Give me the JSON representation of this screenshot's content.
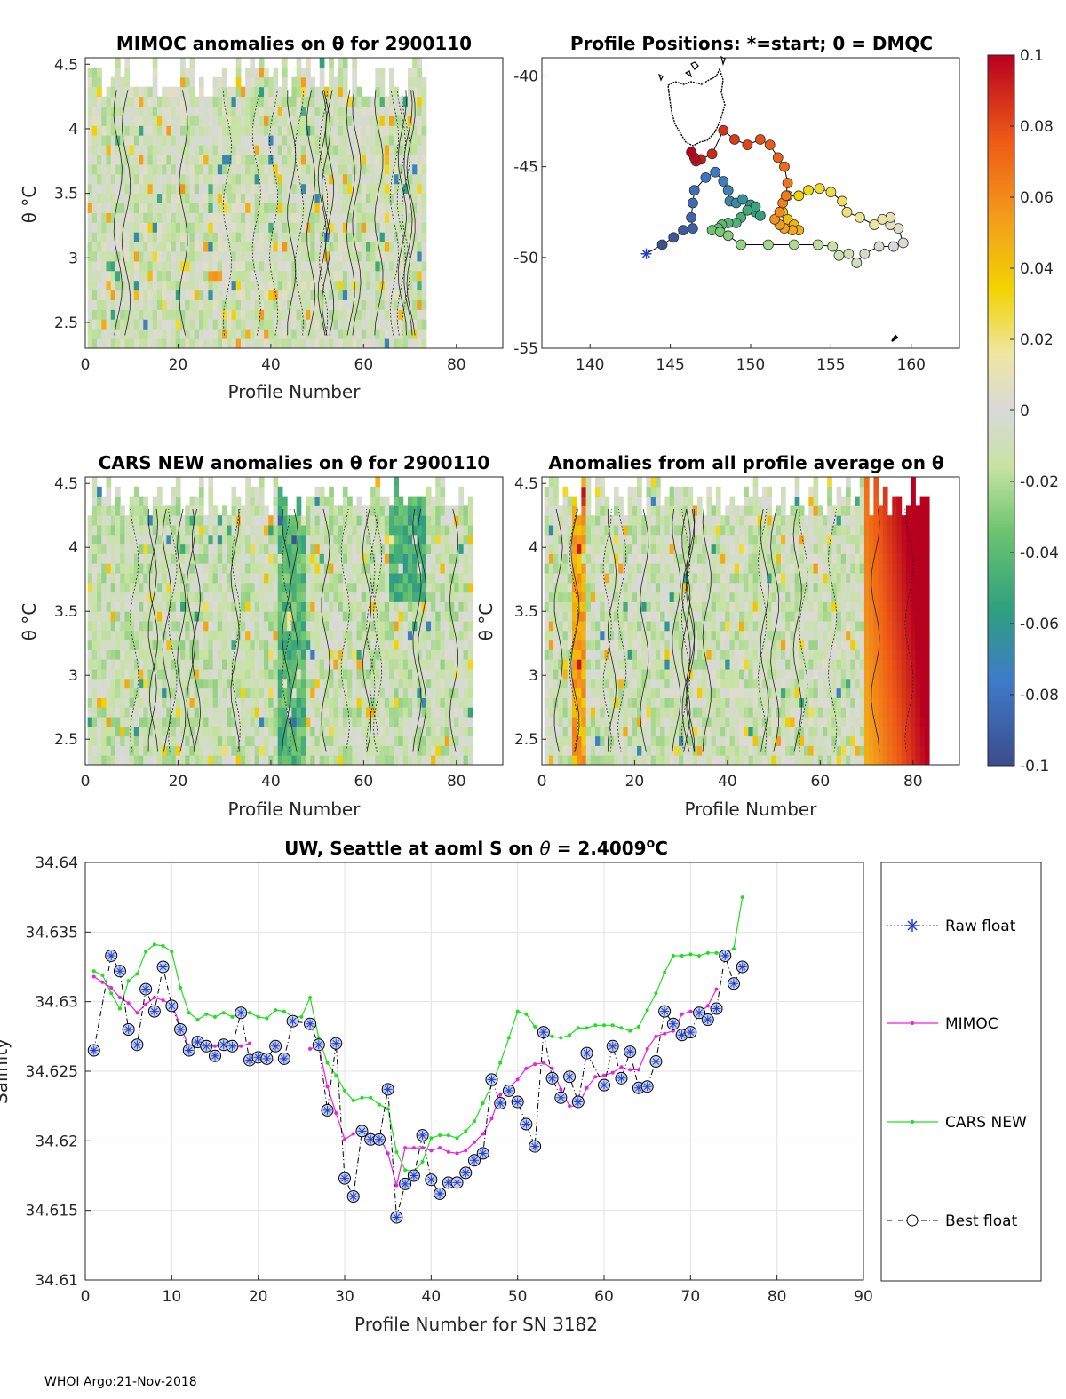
{
  "footer": "WHOI Argo:21-Nov-2018",
  "colorbar": {
    "ticks": [
      "0.1",
      "0.08",
      "0.06",
      "0.04",
      "0.02",
      "0",
      "-0.02",
      "-0.04",
      "-0.06",
      "-0.08",
      "-0.1"
    ],
    "range": [
      -0.1,
      0.1
    ]
  },
  "chart_data": [
    {
      "type": "heatmap",
      "title": "MIMOC anomalies on θ  for 2900110",
      "xlabel": "Profile Number",
      "ylabel": "θ °C",
      "xlim": [
        0,
        90
      ],
      "ylim": [
        2.3,
        4.55
      ],
      "xticks": [
        "0",
        "20",
        "40",
        "60",
        "80"
      ],
      "yticks": [
        "2.5",
        "3",
        "3.5",
        "4",
        "4.5"
      ],
      "profiles": 73
    },
    {
      "type": "scatter",
      "title": "Profile Positions: *=start; 0 = DMQC",
      "xlim": [
        137,
        163
      ],
      "ylim": [
        -55,
        -39
      ],
      "xticks": [
        "140",
        "145",
        "150",
        "155",
        "160"
      ],
      "yticks": [
        "-40",
        "-45",
        "-50",
        "-55"
      ],
      "track": [
        [
          143.5,
          -49.8
        ],
        [
          144.5,
          -49.3
        ],
        [
          145.2,
          -48.9
        ],
        [
          145.8,
          -48.5
        ],
        [
          146.4,
          -48.4
        ],
        [
          146.3,
          -47.8
        ],
        [
          146.4,
          -47.0
        ],
        [
          146.5,
          -46.3
        ],
        [
          147.2,
          -45.6
        ],
        [
          147.8,
          -45.3
        ],
        [
          148.3,
          -45.8
        ],
        [
          148.6,
          -46.3
        ],
        [
          148.7,
          -46.9
        ],
        [
          149.1,
          -47.0
        ],
        [
          149.5,
          -46.8
        ],
        [
          150.0,
          -47.1
        ],
        [
          150.3,
          -47.5
        ],
        [
          150.6,
          -47.7
        ],
        [
          150.3,
          -47.2
        ],
        [
          149.8,
          -47.4
        ],
        [
          149.4,
          -47.8
        ],
        [
          149.1,
          -48.1
        ],
        [
          148.6,
          -48.1
        ],
        [
          148.2,
          -48.2
        ],
        [
          148.0,
          -48.4
        ],
        [
          147.6,
          -48.5
        ],
        [
          148.1,
          -48.6
        ],
        [
          148.6,
          -48.8
        ],
        [
          149.4,
          -49.3
        ],
        [
          151.1,
          -49.3
        ],
        [
          152.7,
          -49.3
        ],
        [
          154.2,
          -49.3
        ],
        [
          155.1,
          -49.4
        ],
        [
          155.5,
          -49.9
        ],
        [
          156.1,
          -49.8
        ],
        [
          156.6,
          -50.3
        ],
        [
          157.1,
          -49.8
        ],
        [
          158.0,
          -49.4
        ],
        [
          158.9,
          -49.4
        ],
        [
          159.5,
          -49.2
        ],
        [
          159.2,
          -48.4
        ],
        [
          158.7,
          -48.2
        ],
        [
          158.7,
          -47.8
        ],
        [
          158.2,
          -47.9
        ],
        [
          157.7,
          -48.2
        ],
        [
          156.8,
          -47.8
        ],
        [
          156.0,
          -47.5
        ],
        [
          155.7,
          -46.9
        ],
        [
          155.0,
          -46.4
        ],
        [
          154.3,
          -46.2
        ],
        [
          153.6,
          -46.3
        ],
        [
          153.0,
          -46.6
        ],
        [
          152.3,
          -46.6
        ],
        [
          152.0,
          -47.5
        ],
        [
          152.3,
          -47.9
        ],
        [
          152.7,
          -48.2
        ],
        [
          153.0,
          -48.5
        ],
        [
          152.6,
          -48.5
        ],
        [
          152.1,
          -48.4
        ],
        [
          151.8,
          -48.2
        ],
        [
          151.5,
          -47.9
        ],
        [
          151.8,
          -47.5
        ],
        [
          152.0,
          -47.0
        ],
        [
          152.2,
          -46.6
        ],
        [
          152.3,
          -45.9
        ],
        [
          152.1,
          -45.0
        ],
        [
          151.7,
          -44.5
        ],
        [
          151.2,
          -43.8
        ],
        [
          150.6,
          -43.5
        ],
        [
          149.8,
          -43.8
        ],
        [
          149.0,
          -43.5
        ],
        [
          148.3,
          -43.0
        ],
        [
          147.6,
          -44.3
        ],
        [
          146.9,
          -44.6
        ],
        [
          146.6,
          -44.7
        ],
        [
          146.5,
          -44.5
        ],
        [
          146.3,
          -44.2
        ]
      ]
    },
    {
      "type": "heatmap",
      "title": "CARS NEW anomalies on θ for 2900110",
      "xlabel": "Profile Number",
      "ylabel": "θ °C",
      "xlim": [
        0,
        90
      ],
      "ylim": [
        2.3,
        4.55
      ],
      "xticks": [
        "0",
        "20",
        "40",
        "60",
        "80"
      ],
      "yticks": [
        "2.5",
        "3",
        "3.5",
        "4",
        "4.5"
      ],
      "profiles": 83
    },
    {
      "type": "heatmap",
      "title": "Anomalies from all profile average on θ",
      "xlabel": "Profile Number",
      "ylabel": "θ °C",
      "xlim": [
        0,
        90
      ],
      "ylim": [
        2.3,
        4.55
      ],
      "xticks": [
        "0",
        "20",
        "40",
        "60",
        "80"
      ],
      "yticks": [
        "2.5",
        "3",
        "3.5",
        "4",
        "4.5"
      ],
      "profiles": 83
    },
    {
      "type": "line",
      "title_prefix": "UW, Seattle at aoml S on ",
      "title_theta": "θ",
      "title_value": " = 2.4009",
      "title_sup": "o",
      "title_unit": "C",
      "xlabel": "Profile Number for SN 3182",
      "ylabel": "Salinity",
      "xlim": [
        0,
        90
      ],
      "ylim": [
        34.61,
        34.64
      ],
      "xticks": [
        "0",
        "10",
        "20",
        "30",
        "40",
        "50",
        "60",
        "70",
        "80",
        "90"
      ],
      "yticks": [
        "34.64",
        "34.635",
        "34.63",
        "34.625",
        "34.62",
        "34.615",
        "34.61"
      ],
      "series": [
        {
          "name": "Best float",
          "x": [
            1,
            3,
            4,
            5,
            6,
            7,
            8,
            9,
            10,
            11,
            12,
            13,
            14,
            15,
            16,
            17,
            18,
            19,
            20,
            21,
            22,
            23,
            24,
            26,
            27,
            28,
            29,
            30,
            31,
            32,
            33,
            34,
            35,
            36,
            37,
            38,
            39,
            40,
            41,
            42,
            43,
            44,
            45,
            46,
            47,
            48,
            49,
            50,
            51,
            52,
            53,
            54,
            55,
            56,
            57,
            58,
            60,
            61,
            62,
            63,
            64,
            65,
            66,
            67,
            68,
            69,
            70,
            71,
            72,
            73,
            74,
            75,
            76
          ],
          "values": [
            34.6265,
            34.6333,
            34.6322,
            34.628,
            34.6269,
            34.6309,
            34.6293,
            34.6325,
            34.6297,
            34.628,
            34.6265,
            34.6271,
            34.6268,
            34.6261,
            34.6269,
            34.6268,
            34.6292,
            34.6258,
            34.626,
            34.6259,
            34.6268,
            34.6259,
            34.6286,
            34.6284,
            34.6269,
            34.6222,
            34.627,
            34.6173,
            34.616,
            34.6207,
            34.6201,
            34.6201,
            34.6237,
            34.6145,
            34.6169,
            34.6175,
            34.6204,
            34.6172,
            34.6162,
            34.617,
            34.617,
            34.6177,
            34.6186,
            34.6191,
            34.6244,
            34.6227,
            34.6236,
            34.6228,
            34.6212,
            34.6196,
            34.6278,
            34.6245,
            34.6231,
            34.6246,
            34.6228,
            34.6263,
            34.624,
            34.6268,
            34.6245,
            34.6264,
            34.6238,
            34.6239,
            34.6257,
            34.6293,
            34.6284,
            34.6276,
            34.6278,
            34.6292,
            34.6287,
            34.6295,
            34.6333,
            34.6313,
            34.6325
          ]
        },
        {
          "name": "MIMOC",
          "segments": [
            [
              [
                1,
                34.6318
              ],
              [
                2,
                34.6314
              ],
              [
                3,
                34.631
              ],
              [
                4,
                34.6303
              ],
              [
                5,
                34.6299
              ],
              [
                6,
                34.6292
              ],
              [
                7,
                34.6298
              ],
              [
                8,
                34.6303
              ],
              [
                9,
                34.6301
              ],
              [
                10,
                34.6298
              ],
              [
                11,
                34.6283
              ],
              [
                12,
                34.6267
              ],
              [
                13,
                34.6268
              ],
              [
                14,
                34.6268
              ],
              [
                15,
                34.6268
              ],
              [
                16,
                34.6268
              ],
              [
                17,
                34.6267
              ],
              [
                18,
                34.6268
              ],
              [
                19,
                34.627
              ]
            ],
            [
              [
                26,
                34.6266
              ],
              [
                27,
                34.6268
              ],
              [
                28,
                34.6239
              ],
              [
                29,
                34.622
              ],
              [
                30,
                34.6201
              ],
              [
                31,
                34.6205
              ],
              [
                32,
                34.6208
              ],
              [
                33,
                34.6205
              ],
              [
                34,
                34.6203
              ],
              [
                35,
                34.6191
              ],
              [
                36,
                34.6168
              ],
              [
                37,
                34.6195
              ],
              [
                38,
                34.6195
              ],
              [
                39,
                34.6195
              ],
              [
                40,
                34.6193
              ],
              [
                41,
                34.6195
              ],
              [
                42,
                34.6192
              ],
              [
                43,
                34.6191
              ],
              [
                44,
                34.6193
              ],
              [
                45,
                34.6199
              ],
              [
                46,
                34.6205
              ],
              [
                47,
                34.6216
              ],
              [
                48,
                34.6233
              ],
              [
                49,
                34.6238
              ],
              [
                50,
                34.6244
              ],
              [
                51,
                34.6252
              ],
              [
                52,
                34.6255
              ],
              [
                53,
                34.6256
              ],
              [
                54,
                34.6252
              ],
              [
                55,
                34.6237
              ],
              [
                56,
                34.6225
              ],
              [
                57,
                34.6225
              ],
              [
                58,
                34.6238
              ],
              [
                59,
                34.6246
              ],
              [
                60,
                34.6247
              ],
              [
                61,
                34.6249
              ],
              [
                62,
                34.6253
              ],
              [
                63,
                34.6251
              ],
              [
                64,
                34.6251
              ],
              [
                65,
                34.6266
              ],
              [
                66,
                34.6275
              ],
              [
                67,
                34.6277
              ],
              [
                68,
                34.6279
              ],
              [
                69,
                34.6291
              ],
              [
                70,
                34.6293
              ],
              [
                71,
                34.6292
              ],
              [
                72,
                34.6297
              ],
              [
                73,
                34.6309
              ]
            ]
          ]
        },
        {
          "name": "CARS NEW",
          "x": [
            1,
            2,
            3,
            4,
            5,
            6,
            7,
            8,
            9,
            10,
            11,
            12,
            13,
            14,
            15,
            16,
            17,
            18,
            19,
            20,
            21,
            22,
            23,
            24,
            25,
            26,
            27,
            28,
            29,
            30,
            31,
            32,
            33,
            34,
            35,
            36,
            37,
            38,
            39,
            40,
            41,
            42,
            43,
            44,
            45,
            46,
            47,
            48,
            49,
            50,
            51,
            52,
            53,
            54,
            55,
            56,
            57,
            58,
            59,
            60,
            61,
            62,
            63,
            64,
            65,
            66,
            67,
            68,
            69,
            70,
            71,
            72,
            73,
            74,
            75,
            76
          ],
          "values": [
            34.6322,
            34.6319,
            34.6306,
            34.6295,
            34.6315,
            34.632,
            34.6336,
            34.6341,
            34.634,
            34.6336,
            34.631,
            34.6292,
            34.6287,
            34.6291,
            34.6289,
            34.6292,
            34.6289,
            34.6292,
            34.6292,
            34.6289,
            34.6288,
            34.6294,
            34.6293,
            34.6289,
            34.6289,
            34.6303,
            34.6274,
            34.6256,
            34.6247,
            34.6236,
            34.6229,
            34.6231,
            34.6231,
            34.6226,
            34.6223,
            34.6192,
            34.6179,
            34.6178,
            34.6185,
            34.6202,
            34.6204,
            34.6204,
            34.6202,
            34.6207,
            34.6214,
            34.6227,
            34.624,
            34.6256,
            34.6274,
            34.6293,
            34.6291,
            34.6282,
            34.6277,
            34.6275,
            34.6274,
            34.6276,
            34.6281,
            34.6281,
            34.6283,
            34.6283,
            34.6283,
            34.6281,
            34.6279,
            34.6282,
            34.6294,
            34.6306,
            34.6321,
            34.6333,
            34.6333,
            34.6334,
            34.6333,
            34.6335,
            34.6335,
            34.6335,
            34.6338,
            34.6375
          ]
        },
        {
          "name": "Raw float",
          "note": "plotted under the Best float markers"
        }
      ],
      "legend": [
        "Raw float",
        "MIMOC",
        "CARS NEW",
        "Best float"
      ]
    }
  ]
}
